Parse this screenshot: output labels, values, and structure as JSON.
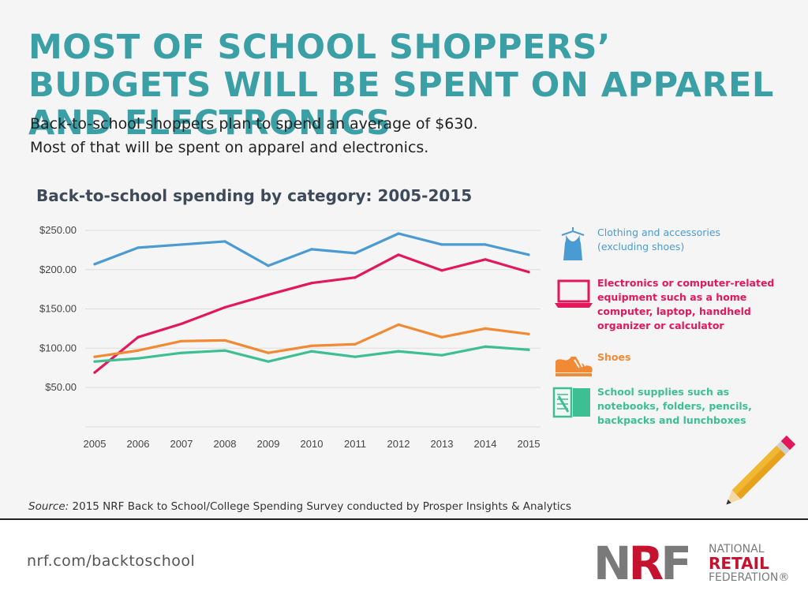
{
  "header": {
    "title": "MOST OF SCHOOL SHOPPERS’ BUDGETS WILL BE SPENT ON APPAREL AND ELECTRONICS",
    "subtitle_line1": "Back-to-school shoppers plan to spend an average of $630.",
    "subtitle_line2": "Most of that will be spent on apparel and electronics."
  },
  "chart_data": {
    "type": "line",
    "title": "Back-to-school spending by category: 2005-2015",
    "x": [
      "2005",
      "2006",
      "2007",
      "2008",
      "2009",
      "2010",
      "2011",
      "2012",
      "2013",
      "2014",
      "2015"
    ],
    "y_ticks": [
      "$50.00",
      "$100.00",
      "$150.00",
      "$200.00",
      "$250.00"
    ],
    "ylim": [
      0,
      260
    ],
    "grid": true,
    "legend_position": "right",
    "series": [
      {
        "key": "clothing",
        "name": "Clothing and accessories",
        "note": "(excluding shoes)",
        "color": "#4b9bd3",
        "icon": "shirt-icon",
        "values": [
          207,
          228,
          232,
          236,
          205,
          226,
          221,
          246,
          232,
          232,
          219
        ]
      },
      {
        "key": "electronics",
        "name": "Electronics or computer-related equipment such as a home computer, laptop, handheld organizer or calculator",
        "note": "",
        "color": "#e2185b",
        "icon": "laptop-icon",
        "values": [
          69,
          114,
          131,
          152,
          168,
          183,
          190,
          219,
          199,
          213,
          197
        ]
      },
      {
        "key": "shoes",
        "name": "Shoes",
        "note": "",
        "color": "#f08a35",
        "icon": "shoe-icon",
        "values": [
          89,
          97,
          109,
          110,
          94,
          103,
          105,
          130,
          114,
          125,
          118
        ]
      },
      {
        "key": "supplies",
        "name": "School supplies such as notebooks, folders, pencils, backpacks and lunchboxes",
        "note": "",
        "color": "#3dbf93",
        "icon": "notebook-icon",
        "values": [
          83,
          87,
          94,
          97,
          83,
          96,
          89,
          96,
          91,
          102,
          98
        ]
      }
    ]
  },
  "source": {
    "label": "Source:",
    "text": " 2015 NRF Back to School/College Spending Survey conducted by Prosper Insights & Analytics"
  },
  "footer": {
    "url": "nrf.com/backtoschool",
    "logo_mark_n": "N",
    "logo_mark_r": "R",
    "logo_mark_f": "F",
    "logo_top": "NATIONAL",
    "logo_mid": "RETAIL",
    "logo_bottom": "FEDERATION",
    "logo_registered": "®"
  },
  "colors": {
    "title": "#3aa0a6",
    "chart_title": "#3e4a5a",
    "grid": "#dddddd",
    "nrf_red": "#c4122f",
    "nrf_gray": "#7a7a7a"
  }
}
